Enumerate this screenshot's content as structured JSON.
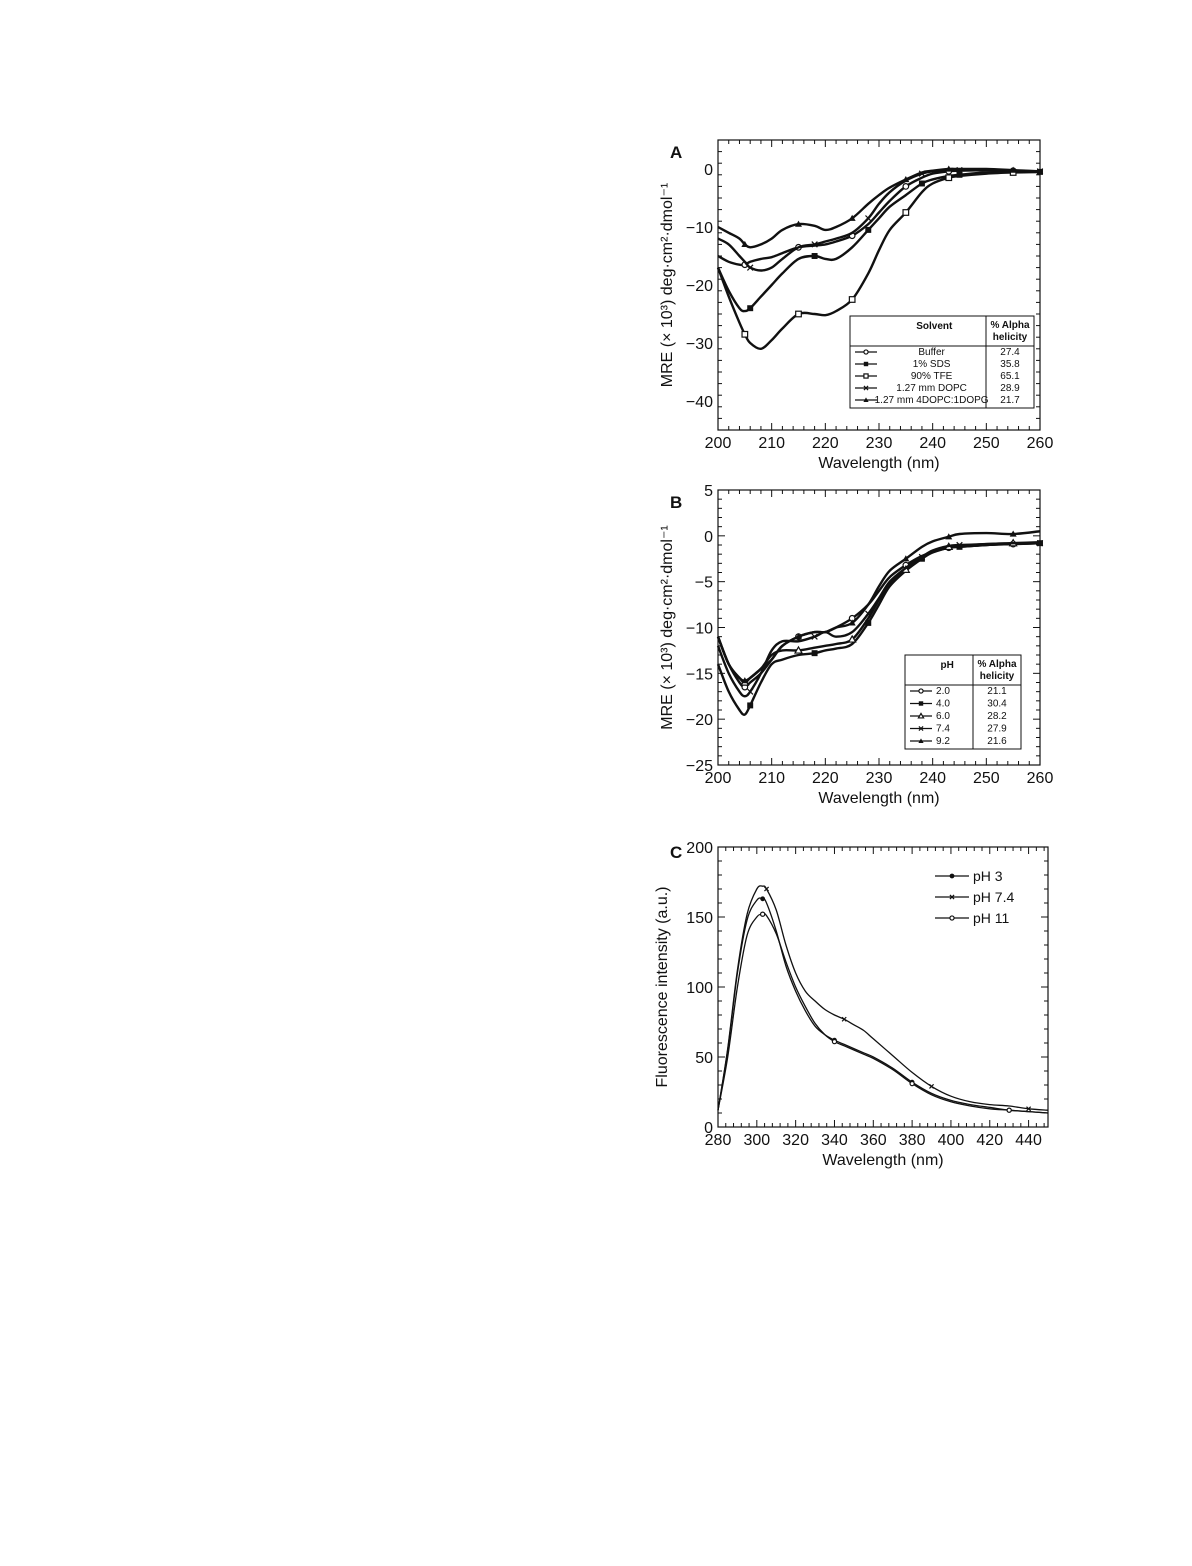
{
  "chart_data": [
    {
      "panel": "A",
      "type": "line",
      "xlabel": "Wavelength (nm)",
      "ylabel": "MRE (× 10³) deg·cm²·dmol⁻¹",
      "xlim": [
        200,
        260
      ],
      "ylim": [
        -45,
        5
      ],
      "xticks": [
        200,
        210,
        220,
        230,
        240,
        250,
        260
      ],
      "yticks": [
        0,
        -10,
        -20,
        -30,
        -40
      ],
      "legend": {
        "placement": "bottom-right",
        "header": [
          "Solvent",
          "% Alpha helicity"
        ],
        "rows": [
          {
            "marker": "circle-open",
            "label": "Buffer",
            "value": "27.4"
          },
          {
            "marker": "square-filled",
            "label": "1% SDS",
            "value": "35.8"
          },
          {
            "marker": "square-open",
            "label": "90% TFE",
            "value": "65.1"
          },
          {
            "marker": "x",
            "label": "1.27 mm DOPC",
            "value": "28.9"
          },
          {
            "marker": "triangle-filled",
            "label": "1.27 mm 4DOPC:1DOPG",
            "value": "21.7"
          }
        ]
      },
      "x": [
        200,
        202,
        204,
        205,
        206,
        208,
        210,
        212,
        215,
        218,
        220,
        222,
        225,
        228,
        230,
        232,
        235,
        238,
        240,
        243,
        245,
        250,
        255,
        260
      ],
      "series": [
        {
          "name": "Buffer",
          "marker": "circle-open",
          "values": [
            -15,
            -16,
            -16.5,
            -16.5,
            -16,
            -15.5,
            -15.2,
            -14.5,
            -13.5,
            -13.2,
            -13,
            -12.5,
            -11.5,
            -9.5,
            -7.5,
            -5.5,
            -3,
            -1.5,
            -0.8,
            -0.4,
            -0.3,
            -0.2,
            -0.3,
            -0.5
          ]
        },
        {
          "name": "1% SDS",
          "marker": "square-filled",
          "values": [
            -17,
            -21,
            -24,
            -24.5,
            -24,
            -22,
            -20,
            -18,
            -15.5,
            -15,
            -15.5,
            -15.5,
            -13.5,
            -10.5,
            -8.5,
            -6.5,
            -4.5,
            -2.5,
            -1.8,
            -1.2,
            -1,
            -0.6,
            -0.5,
            -0.5
          ]
        },
        {
          "name": "90% TFE",
          "marker": "square-open",
          "values": [
            -17,
            -22,
            -26.5,
            -28.5,
            -30,
            -31,
            -29.5,
            -27.5,
            -25,
            -25,
            -25.2,
            -24.5,
            -22.5,
            -18,
            -14,
            -10.5,
            -7.5,
            -4,
            -2.5,
            -1.5,
            -1.2,
            -0.8,
            -0.6,
            -0.5
          ]
        },
        {
          "name": "1.27 mm DOPC",
          "marker": "x",
          "values": [
            -12,
            -13,
            -15,
            -16,
            -17,
            -17.5,
            -17,
            -15.5,
            -13.5,
            -13,
            -12.5,
            -12,
            -11,
            -8.5,
            -6,
            -4,
            -2,
            -0.8,
            -0.4,
            -0.2,
            -0.2,
            -0.1,
            -0.3,
            -0.4
          ]
        },
        {
          "name": "1.27 mm 4DOPC:1DOPG",
          "marker": "triangle-filled",
          "values": [
            -10,
            -11,
            -12,
            -13,
            -13.5,
            -13,
            -12,
            -10.5,
            -9.5,
            -9.8,
            -10.5,
            -10,
            -8.5,
            -6,
            -4.5,
            -3.2,
            -1.8,
            -0.6,
            -0.3,
            0,
            0,
            0,
            -0.2,
            -0.4
          ]
        }
      ]
    },
    {
      "panel": "B",
      "type": "line",
      "xlabel": "Wavelength (nm)",
      "ylabel": "MRE (× 10³) deg·cm²·dmol⁻¹",
      "xlim": [
        200,
        260
      ],
      "ylim": [
        -25,
        5
      ],
      "xticks": [
        200,
        210,
        220,
        230,
        240,
        250,
        260
      ],
      "yticks": [
        5,
        0,
        -5,
        -10,
        -15,
        -20,
        -25
      ],
      "legend": {
        "placement": "bottom-right",
        "header": [
          "pH",
          "% Alpha helicity"
        ],
        "rows": [
          {
            "marker": "circle-open",
            "label": "2.0",
            "value": "21.1"
          },
          {
            "marker": "square-filled",
            "label": "4.0",
            "value": "30.4"
          },
          {
            "marker": "triangle-open",
            "label": "6.0",
            "value": "28.2"
          },
          {
            "marker": "x",
            "label": "7.4",
            "value": "27.9"
          },
          {
            "marker": "triangle-filled",
            "label": "9.2",
            "value": "21.6"
          }
        ]
      },
      "x": [
        200,
        202,
        204,
        205,
        206,
        208,
        210,
        212,
        215,
        218,
        220,
        222,
        225,
        228,
        230,
        232,
        235,
        238,
        240,
        243,
        245,
        250,
        255,
        260
      ],
      "series": [
        {
          "name": "2.0",
          "marker": "circle-open",
          "values": [
            -11,
            -14,
            -16,
            -16.5,
            -16,
            -15,
            -13.5,
            -12,
            -11,
            -10.5,
            -10.5,
            -10,
            -9,
            -7.5,
            -6,
            -4.5,
            -3.2,
            -2.2,
            -1.8,
            -1.3,
            -1.2,
            -1,
            -0.9,
            -0.8
          ]
        },
        {
          "name": "4.0",
          "marker": "square-filled",
          "values": [
            -14,
            -17,
            -19,
            -19.5,
            -18.5,
            -16,
            -14,
            -13.5,
            -13,
            -12.8,
            -12.5,
            -12.3,
            -11.8,
            -9.5,
            -7.5,
            -5.5,
            -3.8,
            -2.5,
            -1.8,
            -1.3,
            -1.2,
            -1,
            -0.9,
            -0.8
          ]
        },
        {
          "name": "6.0",
          "marker": "triangle-open",
          "values": [
            -11,
            -14,
            -15.5,
            -16,
            -15.5,
            -14.5,
            -13,
            -12.5,
            -12.5,
            -12.2,
            -12,
            -11.8,
            -11.3,
            -9,
            -7,
            -5.3,
            -3.7,
            -2.4,
            -1.7,
            -1.2,
            -1.1,
            -0.9,
            -0.8,
            -0.7
          ]
        },
        {
          "name": "7.4",
          "marker": "x",
          "values": [
            -12,
            -15,
            -17,
            -17.5,
            -17,
            -15,
            -12.5,
            -11.5,
            -11.5,
            -11,
            -10.5,
            -11,
            -10.5,
            -8.5,
            -6.8,
            -5,
            -3.5,
            -2.3,
            -1.6,
            -1.1,
            -1,
            -0.9,
            -0.8,
            -0.8
          ]
        },
        {
          "name": "9.2",
          "marker": "triangle-filled",
          "values": [
            -11,
            -14,
            -15.5,
            -15.8,
            -15.5,
            -14.5,
            -13.5,
            -12,
            -11,
            -10.5,
            -10.5,
            -10,
            -9.5,
            -7.5,
            -5.5,
            -3.8,
            -2.5,
            -1.2,
            -0.6,
            -0.1,
            0.2,
            0.3,
            0.2,
            0.5
          ]
        }
      ]
    },
    {
      "panel": "C",
      "type": "line",
      "xlabel": "Wavelength (nm)",
      "ylabel": "Fluorescence intensity (a.u.)",
      "xlim": [
        280,
        450
      ],
      "ylim": [
        0,
        200
      ],
      "xticks": [
        280,
        300,
        320,
        340,
        360,
        380,
        400,
        420,
        440
      ],
      "yticks": [
        0,
        50,
        100,
        150,
        200
      ],
      "legend": {
        "placement": "top-right"
      },
      "x": [
        280,
        285,
        290,
        295,
        300,
        303,
        305,
        310,
        315,
        320,
        325,
        330,
        335,
        340,
        345,
        350,
        355,
        360,
        370,
        380,
        390,
        400,
        410,
        420,
        430,
        440,
        450
      ],
      "series": [
        {
          "name": "pH 3",
          "marker": "dot-filled",
          "values": [
            12,
            55,
            110,
            148,
            162,
            163,
            160,
            140,
            115,
            97,
            83,
            72,
            66,
            62,
            59,
            56,
            53,
            50,
            42,
            32,
            24,
            19,
            16,
            14,
            12,
            11,
            10
          ]
        },
        {
          "name": "pH 7.4",
          "marker": "x",
          "values": [
            12,
            56,
            112,
            152,
            170,
            172,
            170,
            155,
            130,
            110,
            97,
            90,
            84,
            80,
            77,
            73,
            69,
            63,
            51,
            39,
            29,
            22,
            18,
            16,
            15,
            13,
            12
          ]
        },
        {
          "name": "pH 11",
          "marker": "circle-open",
          "values": [
            12,
            50,
            100,
            137,
            150,
            152,
            151,
            138,
            118,
            100,
            86,
            74,
            66,
            61,
            58,
            55,
            52,
            49,
            41,
            31,
            23,
            18,
            15,
            13,
            12,
            11,
            10
          ]
        }
      ]
    }
  ]
}
